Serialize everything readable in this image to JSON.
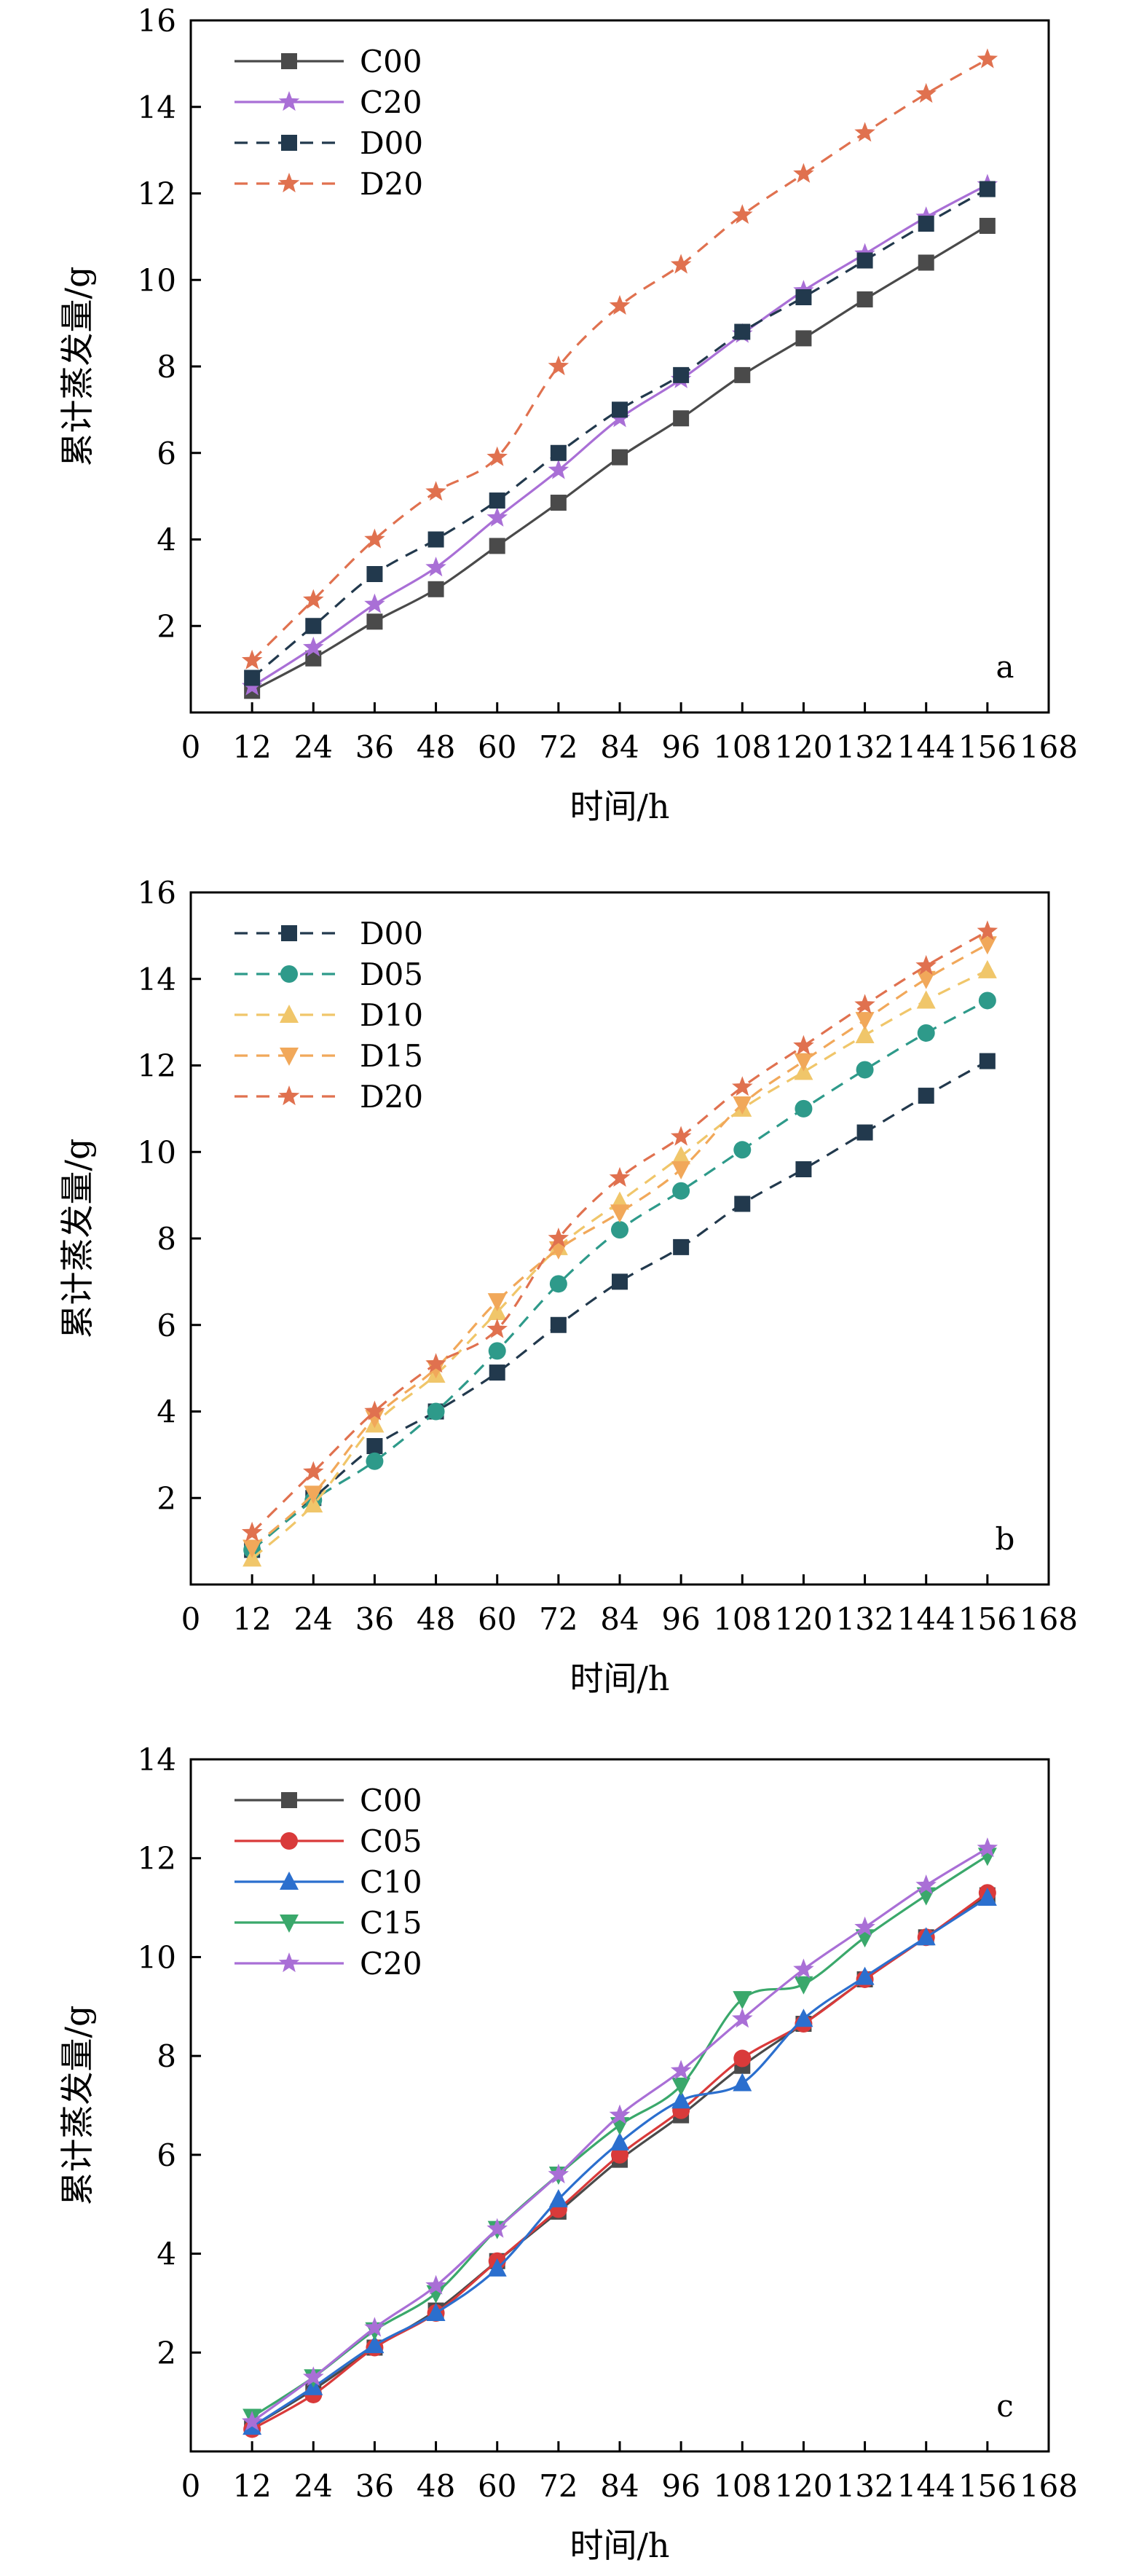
{
  "chart_data": [
    {
      "type": "line",
      "panel_label": "a",
      "xlabel": "时间/h",
      "ylabel": "累计蒸发量/g",
      "xlim": [
        0,
        168
      ],
      "ylim": [
        0,
        16
      ],
      "xticks": [
        0,
        12,
        24,
        36,
        48,
        60,
        72,
        84,
        96,
        108,
        120,
        132,
        144,
        156,
        168
      ],
      "yticks": [
        2,
        4,
        6,
        8,
        10,
        12,
        14,
        16
      ],
      "legend_position": "top-left",
      "x": [
        12,
        24,
        36,
        48,
        60,
        72,
        84,
        96,
        108,
        120,
        132,
        144,
        156
      ],
      "series": [
        {
          "name": "C00",
          "color": "#4a4a4a",
          "marker": "square",
          "dash": "solid",
          "values": [
            0.5,
            1.25,
            2.1,
            2.85,
            3.85,
            4.85,
            5.9,
            6.8,
            7.8,
            8.65,
            9.55,
            10.4,
            11.25
          ]
        },
        {
          "name": "C20",
          "color": "#a96fd6",
          "marker": "star",
          "dash": "solid",
          "values": [
            0.6,
            1.5,
            2.5,
            3.35,
            4.5,
            5.6,
            6.8,
            7.7,
            8.75,
            9.75,
            10.6,
            11.45,
            12.2
          ]
        },
        {
          "name": "D00",
          "color": "#22394d",
          "marker": "square",
          "dash": "dashed",
          "values": [
            0.8,
            2.0,
            3.2,
            4.0,
            4.9,
            6.0,
            7.0,
            7.8,
            8.8,
            9.6,
            10.45,
            11.3,
            12.1
          ]
        },
        {
          "name": "D20",
          "color": "#e0714f",
          "marker": "star",
          "dash": "dashed",
          "values": [
            1.2,
            2.6,
            4.0,
            5.1,
            5.9,
            8.0,
            9.4,
            10.35,
            11.5,
            12.45,
            13.4,
            14.3,
            15.1
          ]
        }
      ]
    },
    {
      "type": "line",
      "panel_label": "b",
      "xlabel": "时间/h",
      "ylabel": "累计蒸发量/g",
      "xlim": [
        0,
        168
      ],
      "ylim": [
        0,
        16
      ],
      "xticks": [
        0,
        12,
        24,
        36,
        48,
        60,
        72,
        84,
        96,
        108,
        120,
        132,
        144,
        156,
        168
      ],
      "yticks": [
        2,
        4,
        6,
        8,
        10,
        12,
        14,
        16
      ],
      "legend_position": "top-left",
      "x": [
        12,
        24,
        36,
        48,
        60,
        72,
        84,
        96,
        108,
        120,
        132,
        144,
        156
      ],
      "series": [
        {
          "name": "D00",
          "color": "#22394d",
          "marker": "square",
          "dash": "dashed",
          "values": [
            0.8,
            2.0,
            3.2,
            4.0,
            4.9,
            6.0,
            7.0,
            7.8,
            8.8,
            9.6,
            10.45,
            11.3,
            12.1
          ]
        },
        {
          "name": "D05",
          "color": "#2e9a8a",
          "marker": "circle",
          "dash": "dashed",
          "values": [
            0.8,
            1.95,
            2.85,
            4.0,
            5.4,
            6.95,
            8.2,
            9.1,
            10.05,
            11.0,
            11.9,
            12.75,
            13.5
          ]
        },
        {
          "name": "D10",
          "color": "#f0c66a",
          "marker": "triangle-up",
          "dash": "dashed",
          "values": [
            0.6,
            1.85,
            3.7,
            4.85,
            6.3,
            7.8,
            8.85,
            9.9,
            11.0,
            11.85,
            12.7,
            13.5,
            14.2
          ]
        },
        {
          "name": "D15",
          "color": "#f1a85a",
          "marker": "triangle-down",
          "dash": "dashed",
          "values": [
            0.85,
            2.1,
            3.85,
            5.0,
            6.55,
            7.75,
            8.6,
            9.6,
            11.1,
            12.1,
            13.05,
            14.0,
            14.8
          ]
        },
        {
          "name": "D20",
          "color": "#e0714f",
          "marker": "star",
          "dash": "dashed",
          "values": [
            1.2,
            2.6,
            4.0,
            5.1,
            5.9,
            8.0,
            9.4,
            10.35,
            11.5,
            12.45,
            13.4,
            14.3,
            15.1
          ]
        }
      ]
    },
    {
      "type": "line",
      "panel_label": "c",
      "xlabel": "时间/h",
      "ylabel": "累计蒸发量/g",
      "xlim": [
        0,
        168
      ],
      "ylim": [
        0,
        14
      ],
      "xticks": [
        0,
        12,
        24,
        36,
        48,
        60,
        72,
        84,
        96,
        108,
        120,
        132,
        144,
        156,
        168
      ],
      "yticks": [
        2,
        4,
        6,
        8,
        10,
        12,
        14
      ],
      "legend_position": "top-left",
      "x": [
        12,
        24,
        36,
        48,
        60,
        72,
        84,
        96,
        108,
        120,
        132,
        144,
        156
      ],
      "series": [
        {
          "name": "C00",
          "color": "#4a4a4a",
          "marker": "square",
          "dash": "solid",
          "values": [
            0.5,
            1.25,
            2.1,
            2.85,
            3.85,
            4.85,
            5.9,
            6.8,
            7.8,
            8.65,
            9.55,
            10.4,
            11.25
          ]
        },
        {
          "name": "C05",
          "color": "#d93a3a",
          "marker": "circle",
          "dash": "solid",
          "values": [
            0.45,
            1.15,
            2.1,
            2.8,
            3.85,
            4.9,
            6.0,
            6.9,
            7.95,
            8.65,
            9.55,
            10.4,
            11.3
          ]
        },
        {
          "name": "C10",
          "color": "#2b6fce",
          "marker": "triangle-up",
          "dash": "solid",
          "values": [
            0.5,
            1.3,
            2.15,
            2.8,
            3.7,
            5.1,
            6.25,
            7.1,
            7.45,
            8.75,
            9.6,
            10.4,
            11.2
          ]
        },
        {
          "name": "C15",
          "color": "#3aa86b",
          "marker": "triangle-down",
          "dash": "solid",
          "values": [
            0.7,
            1.5,
            2.45,
            3.2,
            4.5,
            5.6,
            6.6,
            7.4,
            9.15,
            9.45,
            10.4,
            11.25,
            12.05
          ]
        },
        {
          "name": "C20",
          "color": "#a96fd6",
          "marker": "star",
          "dash": "solid",
          "values": [
            0.6,
            1.5,
            2.5,
            3.35,
            4.5,
            5.6,
            6.8,
            7.7,
            8.75,
            9.75,
            10.6,
            11.45,
            12.2
          ]
        }
      ]
    }
  ]
}
